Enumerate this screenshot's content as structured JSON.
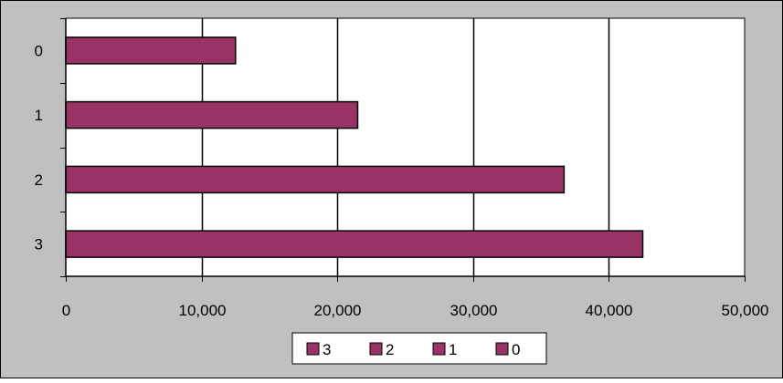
{
  "chart_data": {
    "type": "bar",
    "orientation": "horizontal",
    "title": "",
    "xlabel": "",
    "ylabel": "",
    "categories": [
      "0",
      "1",
      "2",
      "3"
    ],
    "values": [
      12500,
      21500,
      36700,
      42500
    ],
    "xlim": [
      0,
      50000
    ],
    "x_ticks": [
      0,
      10000,
      20000,
      30000,
      40000,
      50000
    ],
    "x_tick_labels": [
      "0",
      "10,000",
      "20,000",
      "30,000",
      "40,000",
      "50,000"
    ],
    "grid": "vertical major gridlines",
    "legend_placement": "bottom",
    "legend_entries": [
      "3",
      "2",
      "1",
      "0"
    ],
    "colors": {
      "bar_fill": "#993366",
      "bar_stroke": "#000000",
      "plot_background": "#ffffff",
      "chart_background": "#c0c0c0",
      "gridline": "#000000"
    }
  }
}
